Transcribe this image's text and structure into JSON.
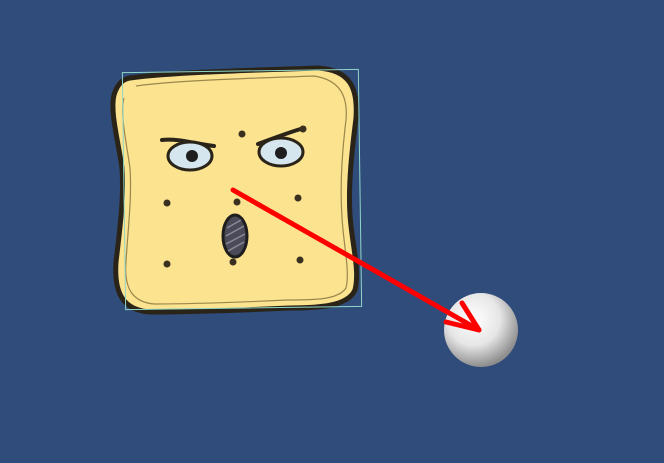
{
  "scene": {
    "background_color": "#304C7A",
    "objects": [
      {
        "name": "cracker-character",
        "kind": "sprite",
        "selected": true,
        "selection_outline_color": "#8FD6C8",
        "fill_color": "#FBE38F",
        "outline_color": "#2A2418",
        "expression": "angry-surprised"
      },
      {
        "name": "ball",
        "kind": "sphere",
        "color": "#E9E9E9"
      },
      {
        "name": "direction-arrow",
        "kind": "gizmo-arrow",
        "color": "#FF0000",
        "from": "cracker-character",
        "to": "ball"
      }
    ]
  }
}
